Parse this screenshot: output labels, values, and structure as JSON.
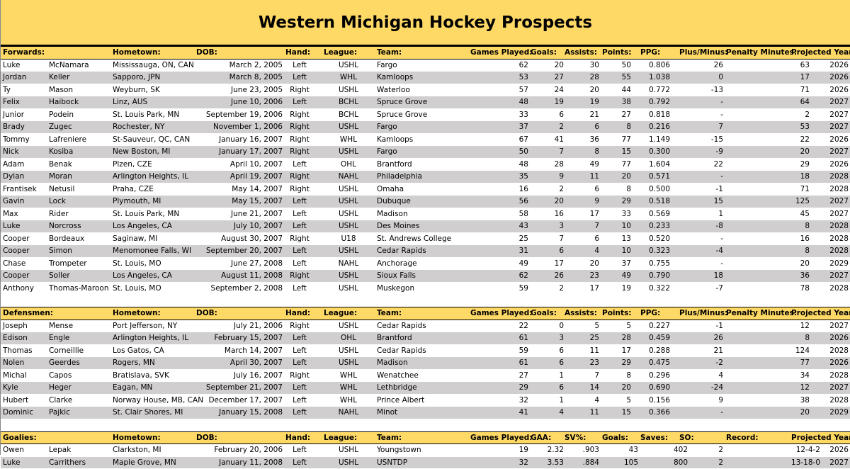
{
  "title": "Western Michigan Hockey Prospects",
  "forwards": {
    "header": [
      "Forwards:",
      "Hometown:",
      "DOB:",
      "Hand:",
      "League:",
      "Team:",
      "Games Played:",
      "Goals:",
      "Assists:",
      "Points:",
      "PPG:",
      "Plus/Minus:",
      "Penalty Minutes:",
      "Projected Year:"
    ],
    "rows": [
      [
        "Luke",
        "McNamara",
        "Mississauga, ON, CAN",
        "March 2, 2005",
        "Left",
        "USHL",
        "Fargo",
        "62",
        "20",
        "30",
        "50",
        "0.806",
        "26",
        "63",
        "2026"
      ],
      [
        "Jordan",
        "Keller",
        "Sapporo, JPN",
        "March 8, 2005",
        "Left",
        "WHL",
        "Kamloops",
        "53",
        "27",
        "28",
        "55",
        "1.038",
        "0",
        "17",
        "2026"
      ],
      [
        "Ty",
        "Mason",
        "Weyburn, SK",
        "June 23, 2005",
        "Right",
        "USHL",
        "Waterloo",
        "57",
        "24",
        "20",
        "44",
        "0.772",
        "-13",
        "71",
        "2026"
      ],
      [
        "Felix",
        "Haibock",
        "Linz, AUS",
        "June 10, 2006",
        "Left",
        "BCHL",
        "Spruce Grove",
        "48",
        "19",
        "19",
        "38",
        "0.792",
        "-",
        "64",
        "2027"
      ],
      [
        "Junior",
        "Podein",
        "St. Louis Park, MN",
        "September 19, 2006",
        "Right",
        "BCHL",
        "Spruce Grove",
        "33",
        "6",
        "21",
        "27",
        "0.818",
        "-",
        "2",
        "2027"
      ],
      [
        "Brady",
        "Zugec",
        "Rochester, NY",
        "November 1, 2006",
        "Right",
        "USHL",
        "Fargo",
        "37",
        "2",
        "6",
        "8",
        "0.216",
        "7",
        "53",
        "2027"
      ],
      [
        "Tommy",
        "Lafreniere",
        "St-Sauveur, QC, CAN",
        "January 16, 2007",
        "Right",
        "WHL",
        "Kamloops",
        "67",
        "41",
        "36",
        "77",
        "1.149",
        "-15",
        "22",
        "2026"
      ],
      [
        "Nick",
        "Kosiba",
        "New Boston, MI",
        "January 17, 2007",
        "Right",
        "USHL",
        "Fargo",
        "50",
        "7",
        "8",
        "15",
        "0.300",
        "-9",
        "20",
        "2027"
      ],
      [
        "Adam",
        "Benak",
        "Plzen, CZE",
        "April 10, 2007",
        "Left",
        "OHL",
        "Brantford",
        "48",
        "28",
        "49",
        "77",
        "1.604",
        "22",
        "29",
        "2026"
      ],
      [
        "Dylan",
        "Moran",
        "Arlington Heights, IL",
        "April 19, 2007",
        "Right",
        "NAHL",
        "Philadelphia",
        "35",
        "9",
        "11",
        "20",
        "0.571",
        "-",
        "18",
        "2028"
      ],
      [
        "Frantisek",
        "Netusil",
        "Praha, CZE",
        "May 14, 2007",
        "Right",
        "USHL",
        "Omaha",
        "16",
        "2",
        "6",
        "8",
        "0.500",
        "-1",
        "71",
        "2028"
      ],
      [
        "Gavin",
        "Lock",
        "Plymouth, MI",
        "May 15, 2007",
        "Left",
        "USHL",
        "Dubuque",
        "56",
        "20",
        "9",
        "29",
        "0.518",
        "15",
        "125",
        "2027"
      ],
      [
        "Max",
        "Rider",
        "St. Louis Park, MN",
        "June 21, 2007",
        "Left",
        "USHL",
        "Madison",
        "58",
        "16",
        "17",
        "33",
        "0.569",
        "1",
        "45",
        "2027"
      ],
      [
        "Luke",
        "Norcross",
        "Los Angeles, CA",
        "July 10, 2007",
        "Left",
        "USHL",
        "Des Moines",
        "43",
        "3",
        "7",
        "10",
        "0.233",
        "-8",
        "8",
        "2028"
      ],
      [
        "Cooper",
        "Bordeaux",
        "Saginaw, MI",
        "August 30, 2007",
        "Right",
        "U18",
        "St. Andrews College",
        "25",
        "7",
        "6",
        "13",
        "0.520",
        "-",
        "16",
        "2028"
      ],
      [
        "Cooper",
        "Simon",
        "Menomonee Falls, WI",
        "September 20, 2007",
        "Left",
        "USHL",
        "Cedar Rapids",
        "31",
        "6",
        "4",
        "10",
        "0.323",
        "-4",
        "8",
        "2028"
      ],
      [
        "Chase",
        "Trompeter",
        "St. Louis, MO",
        "June 27, 2008",
        "Left",
        "NAHL",
        "Anchorage",
        "49",
        "17",
        "20",
        "37",
        "0.755",
        "-",
        "20",
        "2029"
      ],
      [
        "Cooper",
        "Soller",
        "Los Angeles, CA",
        "August 11, 2008",
        "Right",
        "USHL",
        "Sioux Falls",
        "62",
        "26",
        "23",
        "49",
        "0.790",
        "18",
        "36",
        "2027"
      ],
      [
        "Anthony",
        "Thomas-Maroon",
        "St. Louis, MO",
        "September 2, 2008",
        "Left",
        "USHL",
        "Muskegon",
        "59",
        "2",
        "17",
        "19",
        "0.322",
        "-7",
        "78",
        "2028"
      ]
    ]
  },
  "defensemen": {
    "header": [
      "Defensmen:",
      "Hometown:",
      "DOB:",
      "Hand:",
      "League:",
      "Team:",
      "Games Played:",
      "Goals:",
      "Assists:",
      "Points:",
      "PPG:",
      "Plus/Minus:",
      "Penalty Minutes:",
      "Projected Year:"
    ],
    "rows": [
      [
        "Joseph",
        "Mense",
        "Port Jefferson, NY",
        "July 21, 2006",
        "Right",
        "USHL",
        "Cedar Rapids",
        "22",
        "0",
        "5",
        "5",
        "0.227",
        "-1",
        "12",
        "2027"
      ],
      [
        "Edison",
        "Engle",
        "Arlington Heights, IL",
        "February 15, 2007",
        "Left",
        "OHL",
        "Brantford",
        "61",
        "3",
        "25",
        "28",
        "0.459",
        "26",
        "8",
        "2026"
      ],
      [
        "Thomas",
        "Corneillie",
        "Los Gatos, CA",
        "March 14, 2007",
        "Left",
        "USHL",
        "Cedar Rapids",
        "59",
        "6",
        "11",
        "17",
        "0.288",
        "21",
        "124",
        "2028"
      ],
      [
        "Nolen",
        "Geerdes",
        "Rogers, MN",
        "April 30, 2007",
        "Left",
        "USHL",
        "Madison",
        "61",
        "6",
        "23",
        "29",
        "0.475",
        "-2",
        "77",
        "2026"
      ],
      [
        "Michal",
        "Capos",
        "Bratislava, SVK",
        "July 16, 2007",
        "Right",
        "WHL",
        "Wenatchee",
        "27",
        "1",
        "7",
        "8",
        "0.296",
        "4",
        "34",
        "2028"
      ],
      [
        "Kyle",
        "Heger",
        "Eagan, MN",
        "September 21, 2007",
        "Left",
        "WHL",
        "Lethbridge",
        "29",
        "6",
        "14",
        "20",
        "0.690",
        "-24",
        "12",
        "2027"
      ],
      [
        "Hubert",
        "Clarke",
        "Norway House, MB, CAN",
        "December 17, 2007",
        "Left",
        "WHL",
        "Prince Albert",
        "32",
        "1",
        "4",
        "5",
        "0.156",
        "9",
        "38",
        "2028"
      ],
      [
        "Dominic",
        "Pajkic",
        "St. Clair Shores, MI",
        "January 15, 2008",
        "Left",
        "NAHL",
        "Minot",
        "41",
        "4",
        "11",
        "15",
        "0.366",
        "-",
        "20",
        "2029"
      ]
    ]
  },
  "goalies": {
    "header": [
      "Goalies:",
      "Hometown:",
      "DOB:",
      "Hand:",
      "League:",
      "Team:",
      "Games Played:",
      "GAA:",
      "SV%:",
      "Goals:",
      "Saves:",
      "SO:",
      "Record:",
      "Projected Year:"
    ],
    "rows": [
      [
        "Owen",
        "Lepak",
        "Clarkston, MI",
        "February 20, 2006",
        "Left",
        "USHL",
        "Youngstown",
        "19",
        "2.32",
        ".903",
        "43",
        "402",
        "2",
        "12-4-2",
        "2026"
      ],
      [
        "Luke",
        "Carrithers",
        "Maple Grove, MN",
        "January 11, 2008",
        "Left",
        "USHL",
        "USNTDP",
        "32",
        "3.53",
        ".884",
        "105",
        "800",
        "2",
        "13-18-0",
        "2027"
      ]
    ]
  }
}
